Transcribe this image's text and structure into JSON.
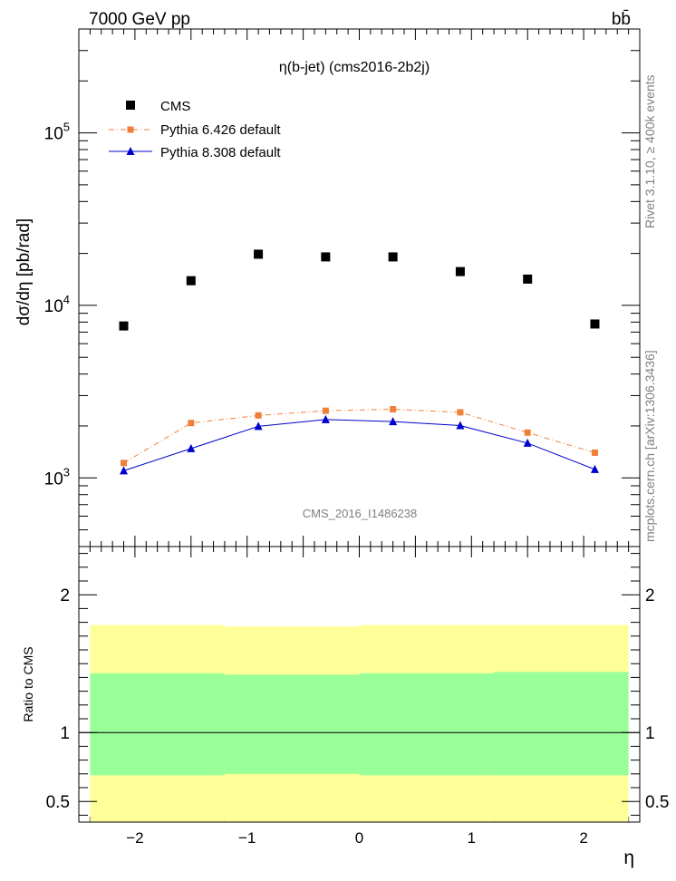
{
  "header": {
    "energy": "7000 GeV pp",
    "process": "bb̄",
    "plot_title": "η(b-jet) (cms2016-2b2j)",
    "analysis_id": "CMS_2016_I1486238",
    "side_rivet": "Rivet 3.1.10, ≥ 400k events",
    "side_mcplots": "mcplots.cern.ch [arXiv:1306.3436]"
  },
  "axes": {
    "ylabel": "dσ/dη [pb/rad]",
    "xlabel": "η",
    "ratio_ylabel": "Ratio to CMS"
  },
  "colors": {
    "cms": "#000000",
    "pythia6": "#f07f3a",
    "pythia8": "#0000cc",
    "band_inner": "#99ff99",
    "band_outer": "#ffff99"
  },
  "chart_data": [
    {
      "type": "scatter",
      "title": "η(b-jet) (cms2016-2b2j)",
      "xlabel": "η",
      "ylabel": "dσ/dη [pb/rad]",
      "xlim": [
        -2.5,
        2.5
      ],
      "ylim": [
        400,
        400000
      ],
      "yscale": "log",
      "legend_position": "top-left",
      "x": [
        -2.1,
        -1.5,
        -0.9,
        -0.3,
        0.3,
        0.9,
        1.5,
        2.1
      ],
      "x_ticks": [
        "−2",
        "−1",
        "0",
        "1",
        "2"
      ],
      "y_ticks": [
        "10^3",
        "10^4",
        "10^5"
      ],
      "series": [
        {
          "name": "CMS",
          "style": "marker-square",
          "values": [
            7600,
            13900,
            19800,
            19100,
            19100,
            15700,
            14200,
            7800
          ]
        },
        {
          "name": "Pythia 6.426 default",
          "style": "dash-dot",
          "values": [
            1220,
            2080,
            2300,
            2450,
            2500,
            2400,
            1830,
            1400
          ]
        },
        {
          "name": "Pythia 8.308 default",
          "style": "solid-triangle",
          "values": [
            1100,
            1480,
            1990,
            2180,
            2120,
            2010,
            1590,
            1120
          ]
        }
      ]
    },
    {
      "type": "area",
      "ylabel": "Ratio to CMS",
      "xlim": [
        -2.5,
        2.5
      ],
      "ylim": [
        0.35,
        2.35
      ],
      "y_ticks": [
        "0.5",
        "1",
        "2"
      ],
      "bin_edges": [
        -2.4,
        -1.2,
        0.0,
        1.2,
        2.4
      ],
      "series": [
        {
          "band": "outer",
          "lower": [
            0.0,
            0.0,
            0.0,
            0.0
          ],
          "upper": [
            1.78,
            1.77,
            1.78,
            1.78
          ]
        },
        {
          "band": "inner",
          "lower": [
            0.69,
            0.7,
            0.69,
            0.69
          ],
          "upper": [
            1.43,
            1.42,
            1.43,
            1.44
          ]
        }
      ],
      "reference_line": 1.0
    }
  ]
}
